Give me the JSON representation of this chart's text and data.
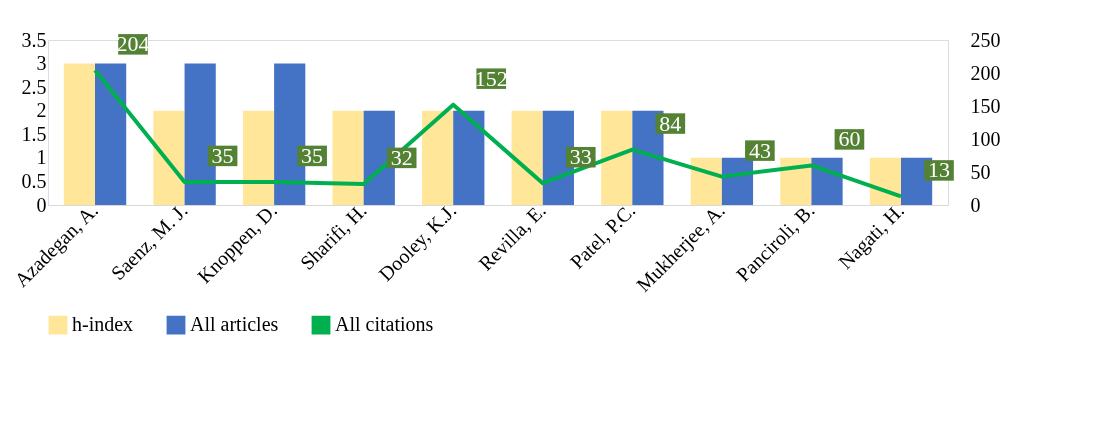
{
  "chart_data": {
    "type": "bar",
    "categories": [
      "Azadegan, A.",
      "Saenz, M. J.",
      "Knoppen, D.",
      "Sharifi, H.",
      "Dooley, K.J.",
      "Revilla, E.",
      "Patel, P.C.",
      "Mukherjee, A.",
      "Panciroli, B.",
      "Nagati, H."
    ],
    "series": [
      {
        "name": "h-index",
        "color": "#ffe699",
        "values": [
          3,
          2,
          2,
          2,
          2,
          2,
          2,
          1,
          1,
          1
        ]
      },
      {
        "name": "All articles",
        "color": "#4472c4",
        "values": [
          3,
          3,
          3,
          2,
          2,
          2,
          2,
          1,
          1,
          1
        ]
      },
      {
        "name": "All citations",
        "color": "#00b050",
        "type": "line",
        "axis": "y2",
        "data_labels": true,
        "values": [
          204,
          35,
          35,
          32,
          152,
          33,
          84,
          43,
          60,
          13
        ]
      }
    ],
    "ylim": [
      0,
      3.5
    ],
    "yticks": [
      0,
      0.5,
      1,
      1.5,
      2,
      2.5,
      3,
      3.5
    ],
    "y2lim": [
      0,
      250
    ],
    "y2ticks": [
      0,
      50,
      100,
      150,
      200,
      250
    ],
    "grid": false,
    "legend": "bottom"
  }
}
